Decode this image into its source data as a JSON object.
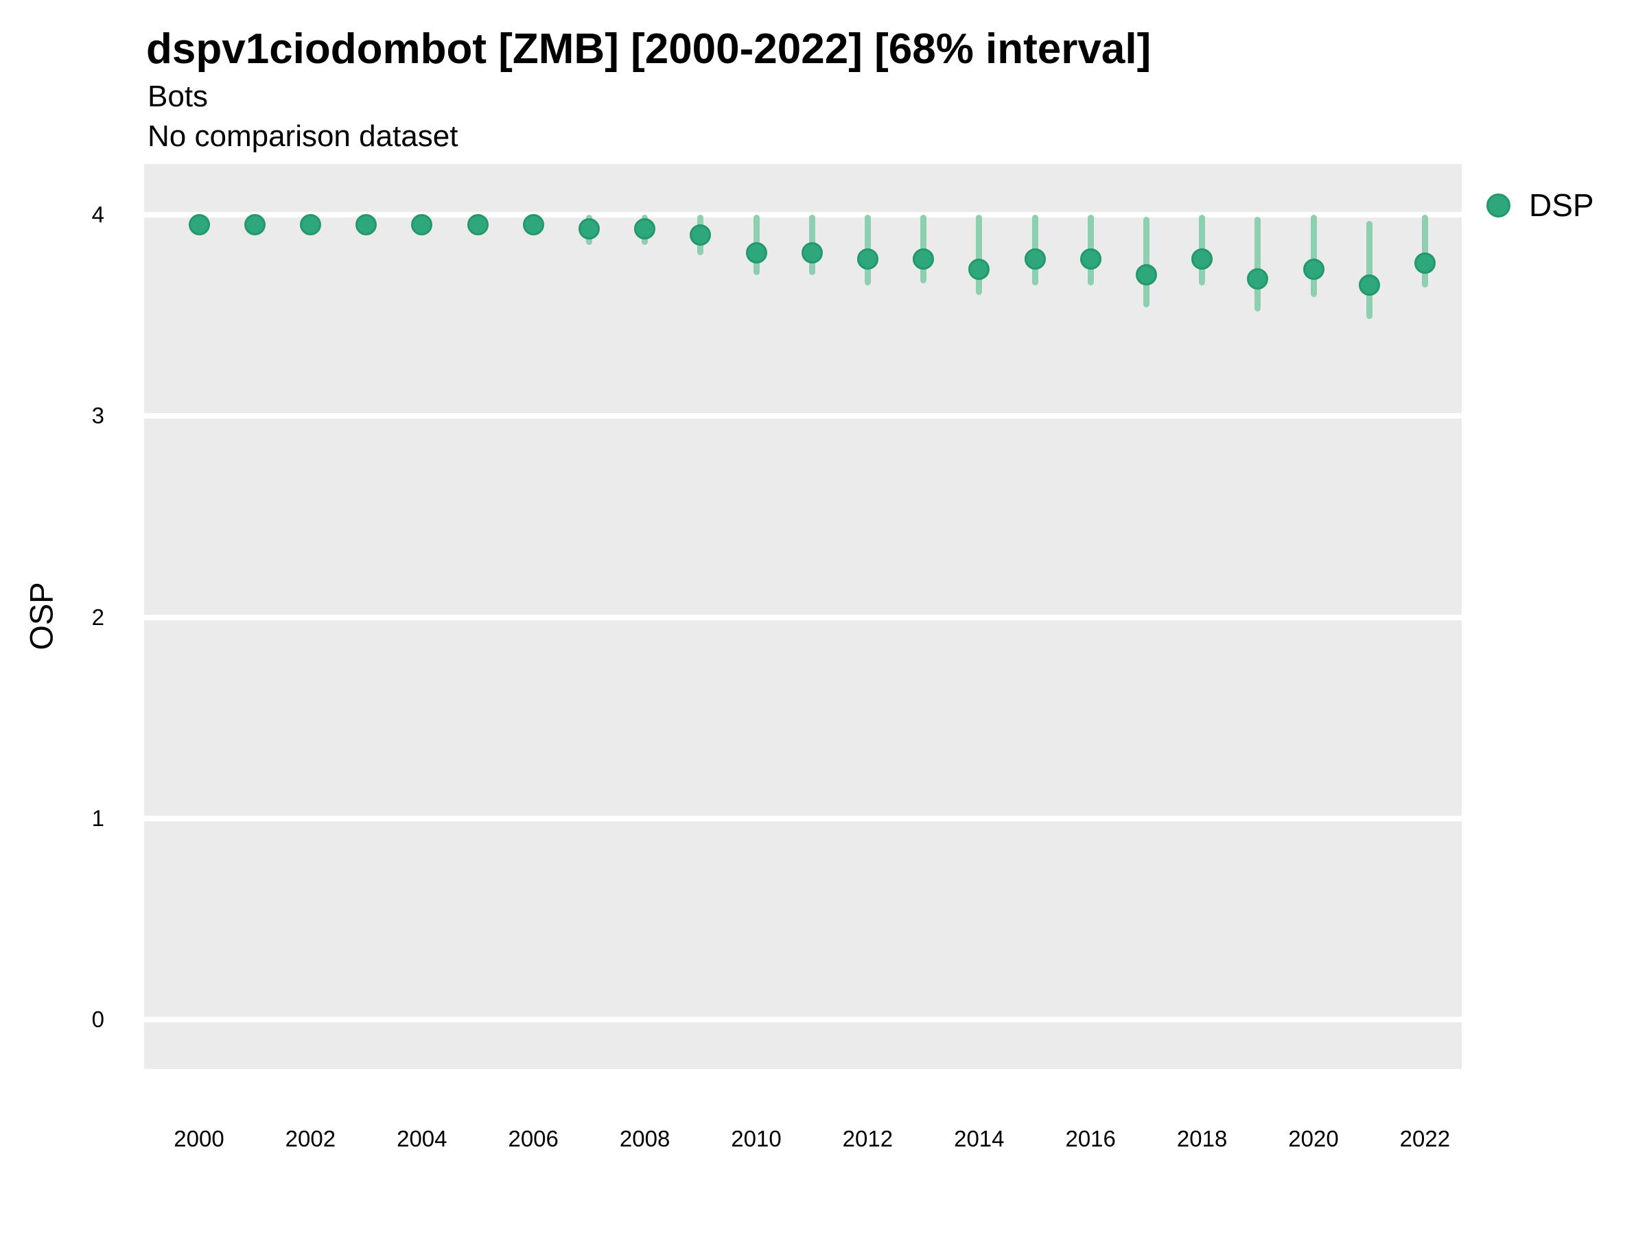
{
  "header": {
    "title": "dspv1ciodombot [ZMB] [2000-2022] [68% interval]",
    "subtitle": "Bots",
    "caption": "No comparison dataset"
  },
  "legend": {
    "items": [
      {
        "label": "DSP",
        "color": "#2ea77c",
        "border": "#23996b"
      }
    ]
  },
  "colors": {
    "panel_background": "#ebebeb",
    "gridline": "#ffffff",
    "point_fill": "#2ea77c",
    "point_border": "#23996b",
    "interval_bar": "#8ecfb2",
    "text": "#000000"
  },
  "chart_data": {
    "type": "scatter",
    "title": "dspv1ciodombot [ZMB] [2000-2022] [68% interval]",
    "subtitle": "Bots",
    "note": "No comparison dataset",
    "interval": "68%",
    "xlabel": "",
    "ylabel": "OSP",
    "x_tick_labels": [
      2000,
      2002,
      2004,
      2006,
      2008,
      2010,
      2012,
      2014,
      2016,
      2018,
      2020,
      2022
    ],
    "y_tick_labels": [
      0,
      1,
      2,
      3,
      4
    ],
    "xlim": [
      1999.0,
      2023.0
    ],
    "ylim": [
      -0.25,
      4.25
    ],
    "grid": "major-horizontal",
    "legend_position": "right",
    "series": [
      {
        "name": "DSP",
        "years": [
          2000,
          2001,
          2002,
          2003,
          2004,
          2005,
          2006,
          2007,
          2008,
          2009,
          2010,
          2011,
          2012,
          2013,
          2014,
          2015,
          2016,
          2017,
          2018,
          2019,
          2020,
          2021,
          2022
        ],
        "values": [
          3.95,
          3.95,
          3.95,
          3.95,
          3.95,
          3.95,
          3.95,
          3.93,
          3.93,
          3.9,
          3.81,
          3.81,
          3.78,
          3.78,
          3.73,
          3.78,
          3.78,
          3.7,
          3.78,
          3.68,
          3.73,
          3.65,
          3.76
        ],
        "lower": [
          3.9,
          3.9,
          3.9,
          3.9,
          3.9,
          3.9,
          3.9,
          3.85,
          3.85,
          3.8,
          3.7,
          3.7,
          3.65,
          3.66,
          3.6,
          3.65,
          3.65,
          3.54,
          3.65,
          3.52,
          3.59,
          3.48,
          3.64
        ],
        "upper": [
          4.0,
          4.0,
          4.0,
          4.0,
          4.0,
          4.0,
          4.0,
          4.0,
          4.0,
          4.0,
          4.0,
          4.0,
          4.0,
          4.0,
          4.0,
          4.0,
          4.0,
          3.99,
          4.0,
          3.99,
          4.0,
          3.97,
          4.0
        ]
      }
    ]
  }
}
